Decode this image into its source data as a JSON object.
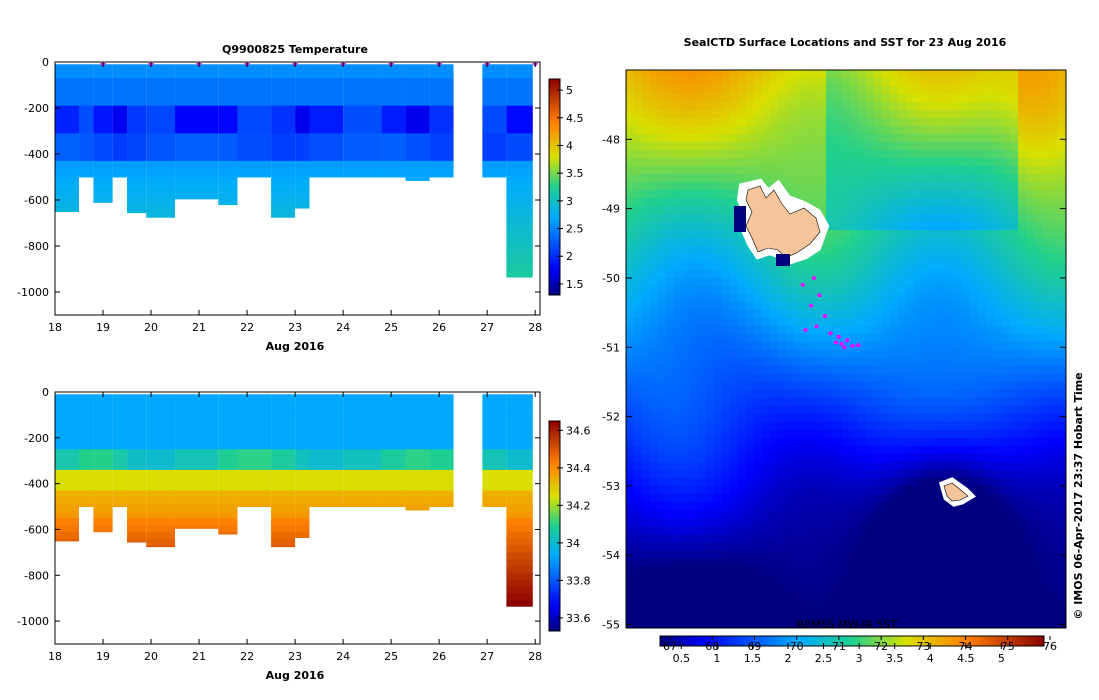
{
  "chart_data": [
    {
      "type": "heatmap",
      "title": "Q9900825  Temperature",
      "xlabel": "Aug 2016",
      "xlim": [
        18,
        28.1
      ],
      "ylim": [
        -1100,
        0
      ],
      "x_ticks": [
        "18",
        "19",
        "20",
        "21",
        "22",
        "23",
        "24",
        "25",
        "26",
        "27",
        "28"
      ],
      "y_ticks": [
        "0",
        "-200",
        "-400",
        "-600",
        "-800",
        "-1000"
      ],
      "colorbar": {
        "min": 1.3,
        "max": 5.2,
        "ticks": [
          "1.5",
          "2",
          "2.5",
          "3",
          "3.5",
          "4",
          "4.5",
          "5"
        ]
      },
      "markers_x": [
        19,
        20,
        21,
        22,
        23,
        24,
        25,
        26,
        27,
        28
      ],
      "profiles": [
        {
          "x0": 18.0,
          "x1": 18.5,
          "depth": 650
        },
        {
          "x0": 18.5,
          "x1": 18.8,
          "depth": 500
        },
        {
          "x0": 18.8,
          "x1": 19.2,
          "depth": 610
        },
        {
          "x0": 19.2,
          "x1": 19.5,
          "depth": 500
        },
        {
          "x0": 19.5,
          "x1": 19.9,
          "depth": 655
        },
        {
          "x0": 19.9,
          "x1": 20.5,
          "depth": 675
        },
        {
          "x0": 20.5,
          "x1": 21.4,
          "depth": 595
        },
        {
          "x0": 21.4,
          "x1": 21.8,
          "depth": 620
        },
        {
          "x0": 21.8,
          "x1": 22.5,
          "depth": 500
        },
        {
          "x0": 22.5,
          "x1": 23.0,
          "depth": 675
        },
        {
          "x0": 23.0,
          "x1": 23.3,
          "depth": 635
        },
        {
          "x0": 23.3,
          "x1": 24.0,
          "depth": 500
        },
        {
          "x0": 24.0,
          "x1": 24.8,
          "depth": 500
        },
        {
          "x0": 24.8,
          "x1": 25.3,
          "depth": 500
        },
        {
          "x0": 25.3,
          "x1": 25.8,
          "depth": 515
        },
        {
          "x0": 25.8,
          "x1": 26.3,
          "depth": 500
        },
        {
          "x0": 26.9,
          "x1": 27.4,
          "depth": 500
        },
        {
          "x0": 27.4,
          "x1": 27.95,
          "depth": 935
        }
      ]
    },
    {
      "type": "heatmap",
      "title": "",
      "xlabel": "Aug 2016",
      "xlim": [
        18,
        28.1
      ],
      "ylim": [
        -1100,
        0
      ],
      "x_ticks": [
        "18",
        "19",
        "20",
        "21",
        "22",
        "23",
        "24",
        "25",
        "26",
        "27",
        "28"
      ],
      "y_ticks": [
        "0",
        "-200",
        "-400",
        "-600",
        "-800",
        "-1000"
      ],
      "colorbar": {
        "min": 33.53,
        "max": 34.65,
        "ticks": [
          "33.6",
          "33.8",
          "34",
          "34.2",
          "34.4",
          "34.6"
        ]
      }
    },
    {
      "type": "heatmap",
      "title": "SealCTD Surface Locations and SST for 23 Aug 2016",
      "y_ticks": [
        "-48",
        "-49",
        "-50",
        "-51",
        "-52",
        "-53",
        "-54",
        "-55"
      ],
      "ylim": [
        -55.05,
        -47.0
      ],
      "colorbar": {
        "min": 0.2,
        "max": 5.6,
        "ticks": [
          "0.5",
          "1",
          "1.5",
          "2",
          "2.5",
          "3",
          "3.5",
          "4",
          "4.5",
          "5"
        ],
        "top_ticks": [
          "67",
          "68",
          "69",
          "70",
          "71",
          "72",
          "73",
          "74",
          "75",
          "76"
        ],
        "source_label": "REMSS MW-IR SST"
      },
      "surface_locations": [
        [
          -50.0,
          149
        ],
        [
          -50.1,
          148.6
        ],
        [
          -50.25,
          149.2
        ],
        [
          -50.4,
          148.9
        ],
        [
          -50.55,
          149.4
        ],
        [
          -50.7,
          149.1
        ],
        [
          -50.75,
          148.7
        ],
        [
          -50.8,
          149.6
        ],
        [
          -50.85,
          149.9
        ],
        [
          -50.9,
          150.2
        ],
        [
          -50.95,
          150.0
        ],
        [
          -50.98,
          150.4
        ],
        [
          -51.0,
          150.1
        ],
        [
          -50.97,
          150.6
        ],
        [
          -50.93,
          149.8
        ]
      ]
    }
  ],
  "credit": "© IMOS 06-Apr-2017 23:37 Hobart Time",
  "map_annotation": "REMSS MW-IR SST"
}
